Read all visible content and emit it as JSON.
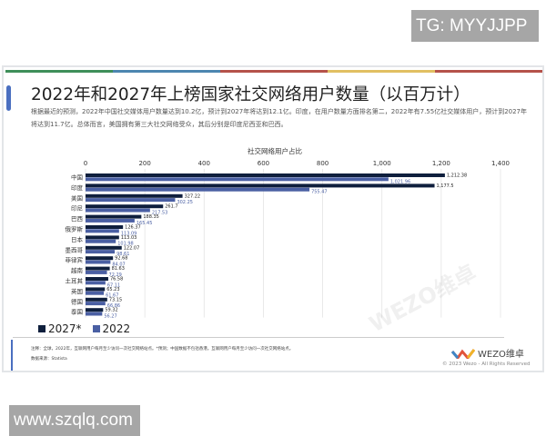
{
  "watermark_top": "TG: MYYJJPP",
  "watermark_bottom": "www.szqlq.com",
  "slide": {
    "title": "2022年和2027年上榜国家社交网络用户数量（以百万计）",
    "description": "根据最近的预测，2022年中国社交媒体用户数量达到10.2亿，预计到2027年将达到12.1亿。印度，在用户数量方面排名第二，2022年有7.55亿社交媒体用户，预计到2027年将达到11.7亿。总体而言，美国拥有第三大社交网络受众，其后分别是印度尼西亚和巴西。",
    "footnote": "注释：全球，2022年，互联网用户每月至少访问一次社交网络站点。*预测；中国数据不包括香港。互联网用户每月至少访问一次社交网络站点。",
    "source": "数据来源：Statista",
    "logo_text": "WEZO维卓",
    "chart_watermark": "WEZO维卓",
    "copyright": "© 2023 Wezo - All Rights Reserved",
    "stripe_colors": [
      "#3f8f5a",
      "#4c86b0",
      "#b5524a",
      "#e1c062",
      "#b5524a"
    ]
  },
  "chart_data": {
    "type": "bar",
    "orientation": "horizontal",
    "title": "社交网络用户占比",
    "categories": [
      "中国",
      "印度",
      "美国",
      "印尼",
      "巴西",
      "俄罗斯",
      "日本",
      "墨西哥",
      "菲律宾",
      "越南",
      "土耳其",
      "英国",
      "德国",
      "泰国"
    ],
    "series": [
      {
        "name": "2027*",
        "color": "#0f1f3d",
        "values": [
          1212.38,
          1177.5,
          327.22,
          261.7,
          188.35,
          126.37,
          113.03,
          122.07,
          92.68,
          81.63,
          76.58,
          65.23,
          73.15,
          59.32
        ]
      },
      {
        "name": "2022",
        "color": "#4a5fa3",
        "values": [
          1021.96,
          755.47,
          302.25,
          217.53,
          165.45,
          113.09,
          101.98,
          98.61,
          84.07,
          72.29,
          67.11,
          61.67,
          66.86,
          56.27
        ]
      }
    ],
    "xlim": [
      0,
      1400
    ],
    "xticks": [
      "0",
      "200",
      "400",
      "600",
      "800",
      "1,000",
      "1,200",
      "1,400"
    ],
    "axis_position": "top",
    "grid": true,
    "legend": "bottom-left"
  }
}
